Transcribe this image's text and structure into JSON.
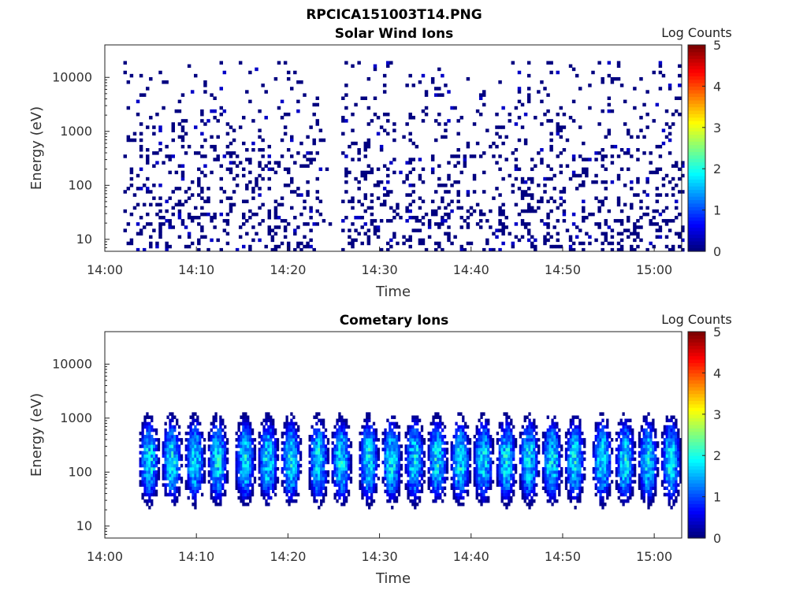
{
  "figure": {
    "suptitle": "RPCICA151003T14.PNG"
  },
  "chart_data": [
    {
      "type": "heatmap",
      "title": "Solar Wind Ions",
      "xlabel": "Time",
      "ylabel": "Energy (eV)",
      "x_ticks": [
        "14:00",
        "14:10",
        "14:20",
        "14:30",
        "14:40",
        "14:50",
        "15:00"
      ],
      "x_range": [
        "14:00",
        "15:03"
      ],
      "y_scale": "log",
      "y_ticks": [
        "10",
        "100",
        "1000",
        "10000"
      ],
      "y_range": [
        6,
        40000
      ],
      "colorbar": {
        "label": "Log Counts",
        "ticks": [
          "0",
          "1",
          "2",
          "3",
          "4",
          "5"
        ],
        "range": [
          0,
          5
        ],
        "colormap": "jet"
      },
      "data_gap": [
        "14:23.5",
        "14:25.5"
      ],
      "description_values": {
        "coverage_start": "14:02",
        "coverage_end": "15:03",
        "typical_log_counts": [
          0,
          0.8
        ]
      }
    },
    {
      "type": "heatmap",
      "title": "Cometary Ions",
      "xlabel": "Time",
      "ylabel": "Energy (eV)",
      "x_ticks": [
        "14:00",
        "14:10",
        "14:20",
        "14:30",
        "14:40",
        "14:50",
        "15:00"
      ],
      "x_range": [
        "14:00",
        "15:03"
      ],
      "y_scale": "log",
      "y_ticks": [
        "10",
        "100",
        "1000",
        "10000"
      ],
      "y_range": [
        6,
        40000
      ],
      "colorbar": {
        "label": "Log Counts",
        "ticks": [
          "0",
          "1",
          "2",
          "3",
          "4",
          "5"
        ],
        "range": [
          0,
          5
        ],
        "colormap": "jet"
      },
      "bursts_minutes": [
        4.7,
        7.2,
        9.7,
        12.2,
        15.2,
        17.7,
        20.2,
        23.2,
        25.7,
        28.7,
        31.2,
        33.7,
        36.2,
        38.7,
        41.2,
        43.7,
        46.2,
        48.7,
        51.2,
        54.2,
        56.7,
        59.2,
        61.7
      ],
      "burst_energy_range_eV": [
        30,
        800
      ],
      "peak_log_counts": 2.0
    }
  ]
}
